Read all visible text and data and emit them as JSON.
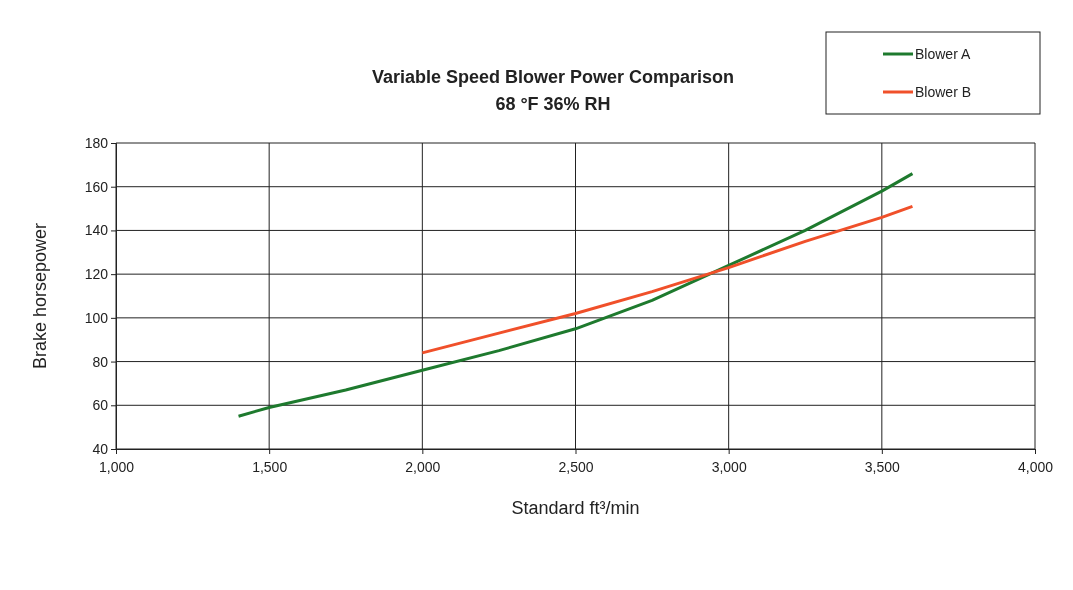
{
  "chart_data": {
    "type": "line",
    "title": "Variable Speed Blower Power Comparison",
    "subtitle": "68 °F 36% RH",
    "xlabel": "Standard ft³/min",
    "ylabel": "Brake horsepower",
    "xlim": [
      1000,
      4000
    ],
    "xticks": [
      {
        "value": 1000,
        "label": "1,000"
      },
      {
        "value": 1500,
        "label": "1,500"
      },
      {
        "value": 2000,
        "label": "2,000"
      },
      {
        "value": 2500,
        "label": "2,500"
      },
      {
        "value": 3000,
        "label": "3,000"
      },
      {
        "value": 3500,
        "label": "3,500"
      },
      {
        "value": 4000,
        "label": "4,000"
      }
    ],
    "ylim": [
      40,
      180
    ],
    "yticks": [
      40,
      60,
      80,
      100,
      120,
      140,
      160,
      180
    ],
    "grid": true,
    "legend": "top right",
    "line_style": "solid",
    "marker": "none",
    "series": [
      {
        "name": "Blower A",
        "color": "#1e7a2e",
        "x": [
          1400,
          1500,
          1750,
          2000,
          2250,
          2500,
          2750,
          3000,
          3250,
          3500,
          3600
        ],
        "values": [
          55,
          59,
          67,
          76,
          85,
          95,
          108,
          124,
          140,
          158,
          166
        ]
      },
      {
        "name": "Blower B",
        "color": "#f0502a",
        "x": [
          2000,
          2250,
          2500,
          2750,
          3000,
          3250,
          3500,
          3600
        ],
        "values": [
          84,
          93,
          102,
          112,
          123,
          135,
          146,
          151
        ]
      }
    ]
  }
}
